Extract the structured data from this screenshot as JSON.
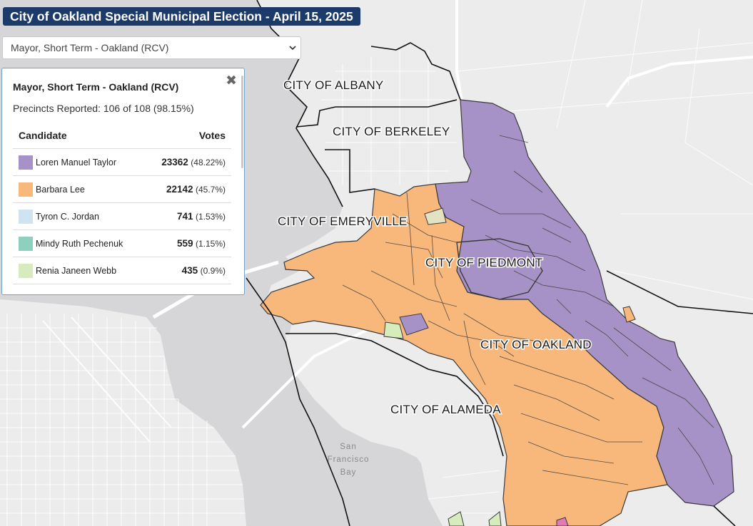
{
  "header": {
    "title": "City of Oakland Special Municipal Election - April 15, 2025"
  },
  "race_select": {
    "selected": "Mayor, Short Term - Oakland (RCV)"
  },
  "panel": {
    "race_title": "Mayor, Short Term - Oakland (RCV)",
    "reported": "Precincts Reported: 106 of 108 (98.15%)",
    "columns": {
      "candidate": "Candidate",
      "votes": "Votes"
    },
    "candidates": [
      {
        "name": "Loren Manuel Taylor",
        "votes": "23362",
        "pct": "(48.22%)",
        "color": "#a792c8"
      },
      {
        "name": "Barbara Lee",
        "votes": "22142",
        "pct": "(45.7%)",
        "color": "#f8b87c"
      },
      {
        "name": "Tyron C. Jordan",
        "votes": "741",
        "pct": "(1.53%)",
        "color": "#cfe3f0"
      },
      {
        "name": "Mindy Ruth Pechenuk",
        "votes": "559",
        "pct": "(1.15%)",
        "color": "#8ed0be"
      },
      {
        "name": "Renia Janeen Webb",
        "votes": "435",
        "pct": "(0.9%)",
        "color": "#d6ecbc"
      }
    ]
  },
  "map": {
    "cities": {
      "albany": "CITY OF ALBANY",
      "berkeley": "CITY OF BERKELEY",
      "emeryville": "CITY OF EMERYVILLE",
      "piedmont": "CITY OF PIEDMONT",
      "oakland": "CITY OF OAKLAND",
      "alameda": "CITY OF ALAMEDA"
    },
    "bay_lines": [
      "San",
      "Francisco",
      "Bay"
    ],
    "colors": {
      "taylor": "#a792c8",
      "lee": "#f8b87c",
      "land": "#ececec",
      "water": "#d6d6d8"
    }
  }
}
